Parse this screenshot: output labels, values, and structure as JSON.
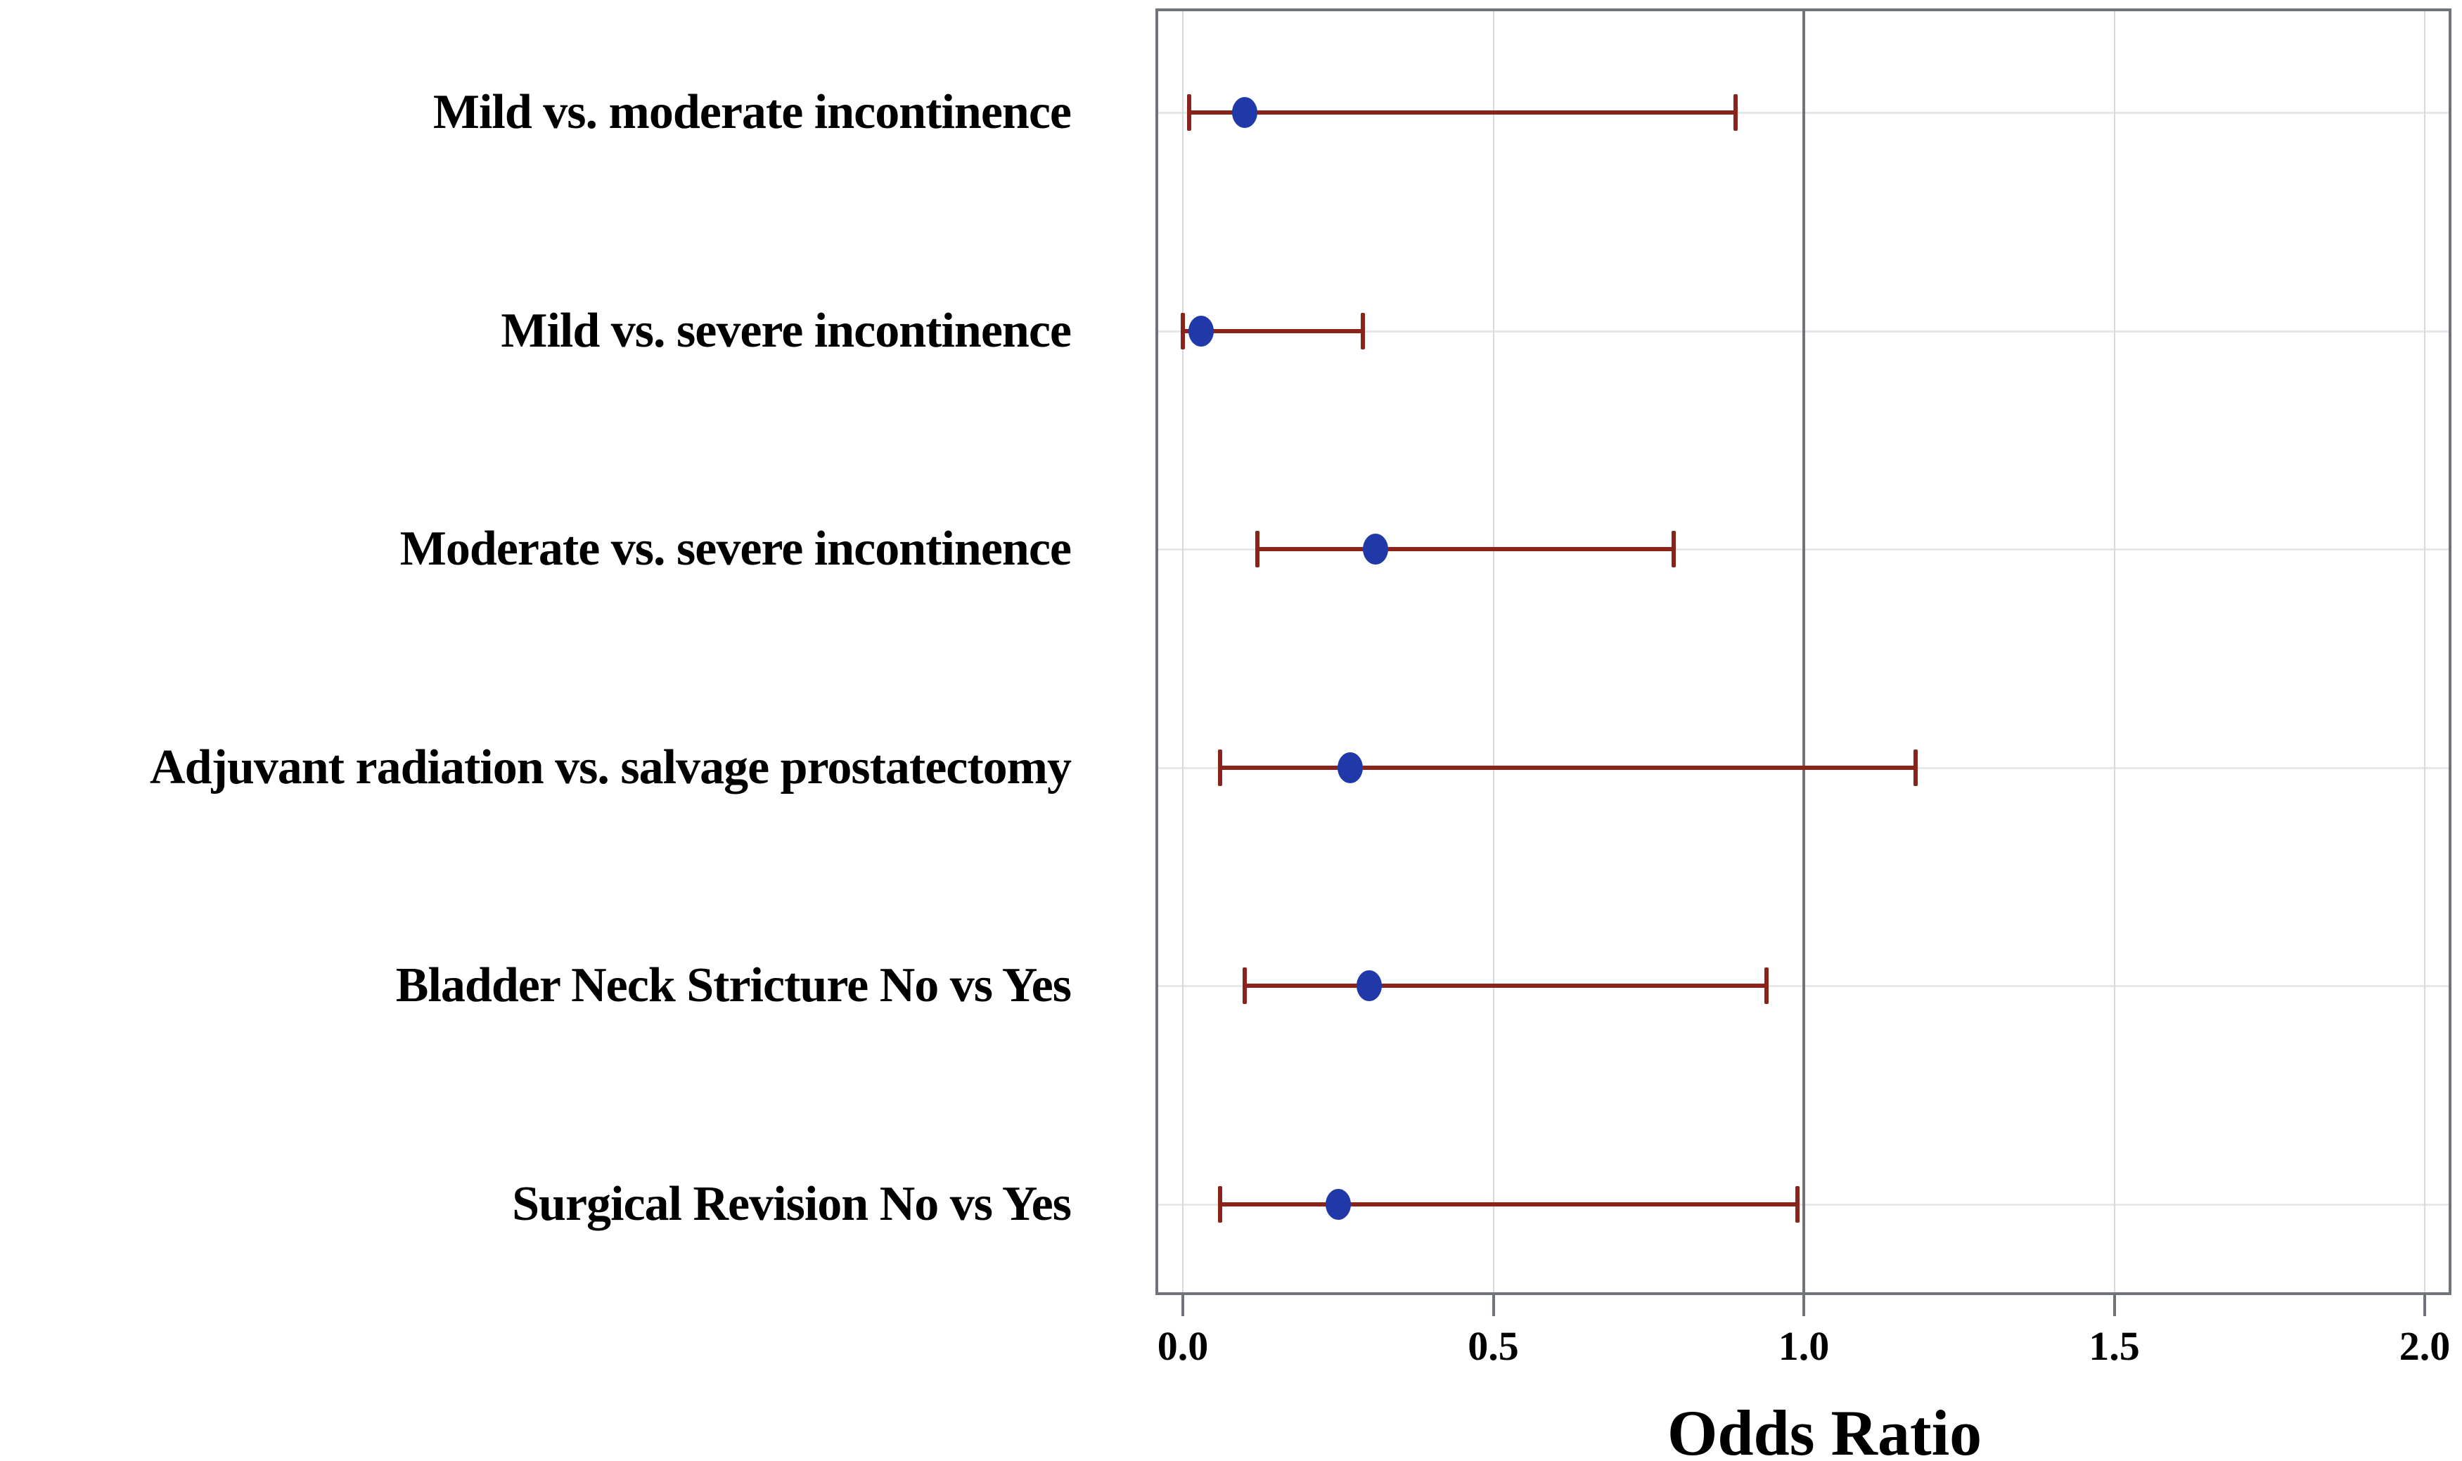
{
  "figure": {
    "background": "#ffffff"
  },
  "chart_data": {
    "type": "scatter",
    "variant": "forest-plot",
    "title": "",
    "xlabel": "Odds Ratio",
    "ylabel": "",
    "xlim": [
      0.0,
      2.0
    ],
    "xticks": [
      0.0,
      0.5,
      1.0,
      1.5,
      2.0
    ],
    "xtick_labels": [
      "0.0",
      "0.5",
      "1.0",
      "1.5",
      "2.0"
    ],
    "reference_line": 1.0,
    "grid": "on",
    "legend": "none",
    "rows": [
      {
        "label": "Mild vs. moderate incontinence",
        "or": 0.1,
        "ci_low": 0.01,
        "ci_high": 0.89
      },
      {
        "label": "Mild vs. severe incontinence",
        "or": 0.03,
        "ci_low": 0.0,
        "ci_high": 0.29
      },
      {
        "label": "Moderate vs. severe incontinence",
        "or": 0.31,
        "ci_low": 0.12,
        "ci_high": 0.79
      },
      {
        "label": "Adjuvant radiation vs. salvage prostatectomy",
        "or": 0.27,
        "ci_low": 0.06,
        "ci_high": 1.18
      },
      {
        "label": "Bladder Neck Stricture No vs Yes",
        "or": 0.3,
        "ci_low": 0.1,
        "ci_high": 0.94
      },
      {
        "label": "Surgical Revision No vs Yes",
        "or": 0.25,
        "ci_low": 0.06,
        "ci_high": 0.99
      }
    ],
    "colors": {
      "marker": "#2038a8",
      "ci": "#8a241a",
      "frame": "#6e7479",
      "reference_line": "#6e7479",
      "grid_vertical": "#d9d9d9",
      "grid_horizontal": "#e7e7e7",
      "text": "#000000"
    }
  }
}
